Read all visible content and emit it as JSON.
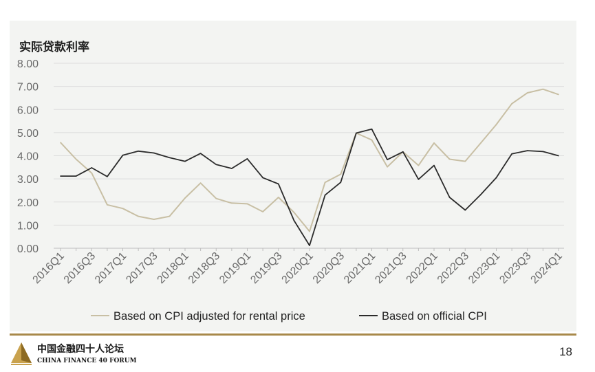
{
  "footer": {
    "logo_cn": "中国金融四十人论坛",
    "logo_en": "CHINA FINANCE 40 FORUM",
    "page_number": "18"
  },
  "colors": {
    "series_rental": "#c8bfa4",
    "series_official": "#2b2b2b",
    "gold": "#a8894a",
    "panel_bg": "#f3f4f2"
  },
  "chart_data": {
    "type": "line",
    "title": "实际贷款利率",
    "xlabel": "",
    "ylabel": "",
    "ylim": [
      0,
      8
    ],
    "yticks": [
      "0.00",
      "1.00",
      "2.00",
      "3.00",
      "4.00",
      "5.00",
      "6.00",
      "7.00",
      "8.00"
    ],
    "grid": "horizontal",
    "legend_position": "bottom",
    "x": [
      "2016Q1",
      "2016Q2",
      "2016Q3",
      "2016Q4",
      "2017Q1",
      "2017Q2",
      "2017Q3",
      "2017Q4",
      "2018Q1",
      "2018Q2",
      "2018Q3",
      "2018Q4",
      "2019Q1",
      "2019Q2",
      "2019Q3",
      "2019Q4",
      "2020Q1",
      "2020Q2",
      "2020Q3",
      "2020Q4",
      "2021Q1",
      "2021Q2",
      "2021Q3",
      "2021Q4",
      "2022Q1",
      "2022Q2",
      "2022Q3",
      "2022Q4",
      "2023Q1",
      "2023Q2",
      "2023Q3",
      "2023Q4",
      "2024Q1"
    ],
    "xtick_labels": [
      "2016Q1",
      "2016Q3",
      "2017Q1",
      "2017Q3",
      "2018Q1",
      "2018Q3",
      "2019Q1",
      "2019Q3",
      "2020Q1",
      "2020Q3",
      "2021Q1",
      "2021Q3",
      "2022Q1",
      "2022Q3",
      "2023Q1",
      "2023Q3",
      "2024Q1"
    ],
    "series": [
      {
        "name": "Based on CPI adjusted for rental price",
        "color": "#c8bfa4",
        "values": [
          4.57,
          3.85,
          3.25,
          1.88,
          1.72,
          1.38,
          1.25,
          1.38,
          2.17,
          2.82,
          2.15,
          1.95,
          1.92,
          1.58,
          2.2,
          1.55,
          0.73,
          2.85,
          3.2,
          4.98,
          4.68,
          3.52,
          4.17,
          3.58,
          4.55,
          3.85,
          3.76,
          4.55,
          5.35,
          6.25,
          6.72,
          6.88,
          6.65
        ]
      },
      {
        "name": "Based on official CPI",
        "color": "#2b2b2b",
        "values": [
          3.12,
          3.12,
          3.48,
          3.1,
          4.02,
          4.2,
          4.12,
          3.92,
          3.76,
          4.1,
          3.62,
          3.45,
          3.87,
          3.05,
          2.78,
          1.2,
          0.12,
          2.3,
          2.85,
          4.98,
          5.15,
          3.83,
          4.17,
          2.98,
          3.58,
          2.2,
          1.65,
          2.32,
          3.05,
          4.08,
          4.22,
          4.18,
          4.0
        ]
      }
    ]
  }
}
